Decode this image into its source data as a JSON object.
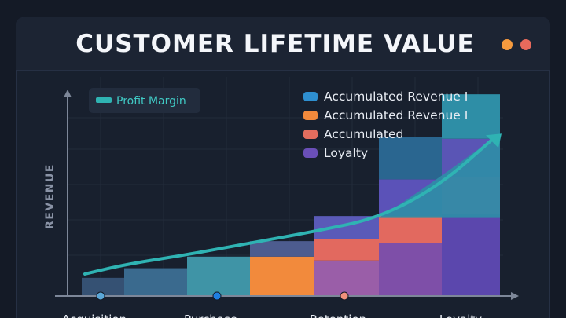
{
  "chart_data": {
    "type": "bar",
    "title": "CUSTOMER LIFETIME VALUE",
    "ylabel": "REVENUE",
    "xlabel": "",
    "categories": [
      "Acquisition",
      "Purchase",
      "Retention",
      "Loyalty"
    ],
    "ylim": [
      0,
      100
    ],
    "series": [
      {
        "name": "Accumulated Revenue I",
        "color": "#2e8fd0"
      },
      {
        "name": "Accumulated Revenue I",
        "color": "#f28a3c"
      },
      {
        "name": "Accumulated",
        "color": "#e26d5e"
      },
      {
        "name": "Loyalty",
        "color": "#6a4fb8"
      }
    ],
    "bars": [
      {
        "segments": [
          {
            "value": 9,
            "color": "#355173"
          }
        ]
      },
      {
        "segments": [
          {
            "value": 14,
            "color": "#3a6a8e"
          }
        ]
      },
      {
        "segments": [
          {
            "value": 20,
            "color": "#3f94a6"
          }
        ]
      },
      {
        "segments": [
          {
            "value": 20,
            "color": "#f28a3c"
          },
          {
            "value": 8,
            "color": "#4d5c8f"
          }
        ]
      },
      {
        "segments": [
          {
            "value": 18,
            "color": "#9a5ea8"
          },
          {
            "value": 11,
            "color": "#e2695f"
          },
          {
            "value": 12,
            "color": "#5a5ab8"
          }
        ]
      },
      {
        "segments": [
          {
            "value": 27,
            "color": "#7e4fa8"
          },
          {
            "value": 14,
            "color": "#e2695f"
          },
          {
            "value": 19,
            "color": "#5b52b8"
          },
          {
            "value": 22,
            "color": "#2a6690"
          }
        ]
      },
      {
        "segments": [
          {
            "value": 42,
            "color": "#5b47ad"
          },
          {
            "value": 19,
            "color": "#8a55b0"
          },
          {
            "value": 20,
            "color": "#5a55b5"
          },
          {
            "value": 23,
            "color": "#2e8ea6"
          }
        ]
      }
    ],
    "line": {
      "name": "Profit Margin",
      "color": "#2fb3b3",
      "values": [
        11,
        16,
        21,
        27,
        33,
        40,
        57,
        82
      ]
    },
    "category_markers": [
      {
        "label": "Acquisition",
        "color": "#5aa7d8"
      },
      {
        "label": "Purchase",
        "color": "#1f7fe0"
      },
      {
        "label": "Retention",
        "color": "#f0917c"
      },
      {
        "label": "Loyalty",
        "color": ""
      }
    ],
    "grid": true,
    "legend": "top-right"
  }
}
